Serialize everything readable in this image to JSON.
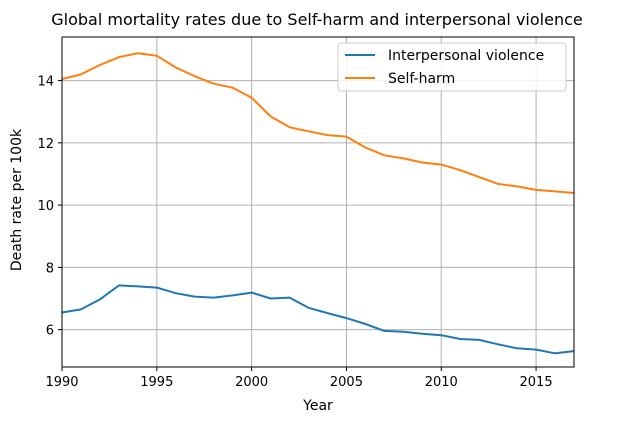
{
  "chart_data": {
    "type": "line",
    "title": "Global mortality rates due to Self-harm and interpersonal violence",
    "xlabel": "Year",
    "ylabel": "Death rate per 100k",
    "xlim": [
      1990,
      2017
    ],
    "ylim": [
      4.8,
      15.4
    ],
    "xticks": [
      1990,
      1995,
      2000,
      2005,
      2010,
      2015
    ],
    "yticks": [
      6,
      8,
      10,
      12,
      14
    ],
    "grid": true,
    "legend_position": "upper right",
    "x": [
      1990,
      1991,
      1992,
      1993,
      1994,
      1995,
      1996,
      1997,
      1998,
      1999,
      2000,
      2001,
      2002,
      2003,
      2004,
      2005,
      2006,
      2007,
      2008,
      2009,
      2010,
      2011,
      2012,
      2013,
      2014,
      2015,
      2016,
      2017
    ],
    "series": [
      {
        "name": "Interpersonal violence",
        "color": "#1f77b4",
        "values": [
          6.55,
          6.65,
          6.97,
          7.42,
          7.39,
          7.35,
          7.17,
          7.06,
          7.03,
          7.1,
          7.19,
          7.0,
          7.03,
          6.7,
          6.53,
          6.37,
          6.18,
          5.96,
          5.93,
          5.87,
          5.82,
          5.7,
          5.67,
          5.53,
          5.4,
          5.36,
          5.24,
          5.31
        ]
      },
      {
        "name": "Self-harm",
        "color": "#ff7f0e",
        "values": [
          14.05,
          14.2,
          14.5,
          14.75,
          14.88,
          14.8,
          14.42,
          14.14,
          13.9,
          13.77,
          13.45,
          12.85,
          12.5,
          12.37,
          12.25,
          12.2,
          11.85,
          11.6,
          11.5,
          11.37,
          11.3,
          11.12,
          10.9,
          10.68,
          10.6,
          10.49,
          10.44,
          10.39
        ]
      }
    ]
  }
}
